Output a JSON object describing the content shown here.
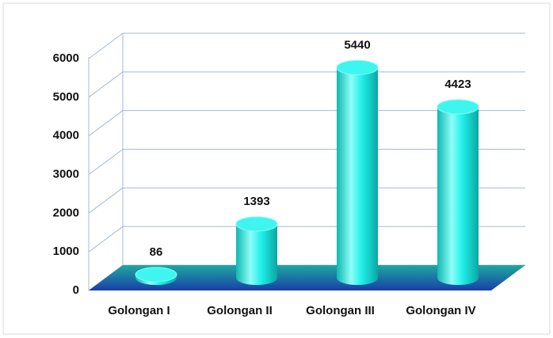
{
  "chart_data": {
    "type": "bar",
    "categories": [
      "Golongan I",
      "Golongan II",
      "Golongan III",
      "Golongan IV"
    ],
    "values": [
      86,
      1393,
      5440,
      4423
    ],
    "color": "#19e6e0",
    "ylim": [
      0,
      6000
    ],
    "yticks": [
      0,
      1000,
      2000,
      3000,
      4000,
      5000,
      6000
    ],
    "grid": true
  }
}
